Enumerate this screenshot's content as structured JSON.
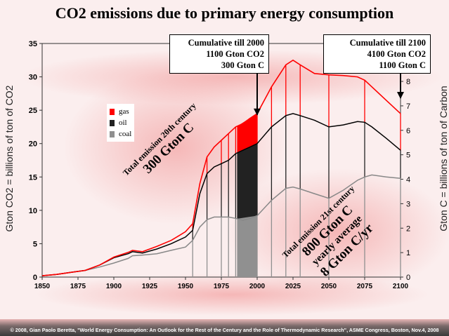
{
  "title": "CO2 emissions due to primary energy consumption",
  "callouts": {
    "c2000": [
      "Cumulative till 2000",
      "1100 Gton CO2",
      "300 Gton C"
    ],
    "c2100": [
      "Cumulative till 2100",
      "4100 Gton CO2",
      "1100 Gton C"
    ]
  },
  "notes": {
    "n20_line1": "Total emission 20th century",
    "n20_line2": "300 Gton C",
    "n21_line1": "Total emission 21st century",
    "n21_line2": "800 Gton C",
    "n21_line3": "yearly average",
    "n21_line4": "8 Gton C/yr"
  },
  "y_left_label": "Gton CO2 = billions of ton of CO2",
  "y_right_label": "Gton C = billions of ton of Carbon",
  "footer": "© 2008, Gian Paolo Beretta, \"World Energy Consumption: An Outlook for the Rest of the Century and the Role of Thermodynamic Research\", ASME Congress, Boston, Nov.4, 2008",
  "colors": {
    "gas": "#ff0000",
    "oil": "#222222",
    "coal": "#909090"
  },
  "chart_data": {
    "type": "area",
    "x_ticks": [
      "1850",
      "1875",
      "1900",
      "1925",
      "1950",
      "1975",
      "2000",
      "2025",
      "2050",
      "2075",
      "2100"
    ],
    "y_left_ticks": [
      "0",
      "5",
      "10",
      "15",
      "20",
      "25",
      "30",
      "35"
    ],
    "y_right_ticks": [
      "0",
      "1",
      "2",
      "3",
      "4",
      "5",
      "6",
      "7",
      "8"
    ],
    "xlim": [
      1850,
      2100
    ],
    "ylim": [
      0,
      35
    ],
    "y2lim": [
      0,
      9.55
    ],
    "legend": [
      "gas",
      "oil",
      "coal"
    ],
    "series": [
      {
        "name": "coal",
        "x": [
          1850,
          1860,
          1870,
          1880,
          1890,
          1900,
          1910,
          1913,
          1920,
          1930,
          1940,
          1950,
          1955,
          1960,
          1965,
          1970,
          1975,
          1980,
          1985,
          1990,
          1995,
          2000,
          2010,
          2020,
          2025,
          2030,
          2040,
          2050,
          2060,
          2070,
          2075,
          2080,
          2090,
          2100
        ],
        "y": [
          0.2,
          0.4,
          0.7,
          1.0,
          1.5,
          2.1,
          2.8,
          3.2,
          3.3,
          3.5,
          4.0,
          4.5,
          5.5,
          7.5,
          8.6,
          9.0,
          9.0,
          9.0,
          8.8,
          8.5,
          8.8,
          9.2,
          11.5,
          13.3,
          13.5,
          13.2,
          12.5,
          11.8,
          13.0,
          14.5,
          15.0,
          15.3,
          15.0,
          14.8
        ]
      },
      {
        "name": "oil",
        "x": [
          1850,
          1860,
          1870,
          1880,
          1890,
          1900,
          1910,
          1913,
          1920,
          1930,
          1940,
          1950,
          1955,
          1960,
          1965,
          1970,
          1975,
          1980,
          1985,
          1990,
          1995,
          2000,
          2010,
          2020,
          2025,
          2030,
          2040,
          2050,
          2060,
          2070,
          2075,
          2080,
          2090,
          2100
        ],
        "y": [
          0.2,
          0.4,
          0.7,
          1.0,
          1.8,
          2.9,
          3.5,
          3.8,
          3.6,
          4.2,
          5.0,
          6.0,
          7.0,
          12.5,
          15.5,
          16.5,
          17.0,
          17.5,
          18.5,
          19.0,
          19.5,
          20.0,
          22.5,
          24.2,
          24.5,
          24.2,
          23.5,
          22.5,
          22.8,
          23.3,
          23.2,
          22.5,
          20.8,
          19.0
        ]
      },
      {
        "name": "gas",
        "x": [
          1850,
          1860,
          1870,
          1880,
          1890,
          1900,
          1910,
          1913,
          1920,
          1930,
          1940,
          1950,
          1955,
          1960,
          1965,
          1970,
          1975,
          1980,
          1985,
          1990,
          1995,
          2000,
          2010,
          2020,
          2025,
          2030,
          2040,
          2050,
          2060,
          2070,
          2075,
          2080,
          2090,
          2100
        ],
        "y": [
          0.2,
          0.4,
          0.7,
          1.0,
          1.8,
          3.0,
          3.7,
          4.0,
          3.8,
          4.6,
          5.5,
          6.8,
          8.0,
          14.0,
          18.0,
          19.5,
          20.5,
          21.5,
          22.5,
          23.0,
          23.8,
          24.5,
          28.5,
          31.8,
          32.5,
          31.8,
          30.5,
          30.3,
          30.2,
          30.0,
          29.5,
          28.5,
          26.5,
          24.5
        ]
      }
    ]
  }
}
